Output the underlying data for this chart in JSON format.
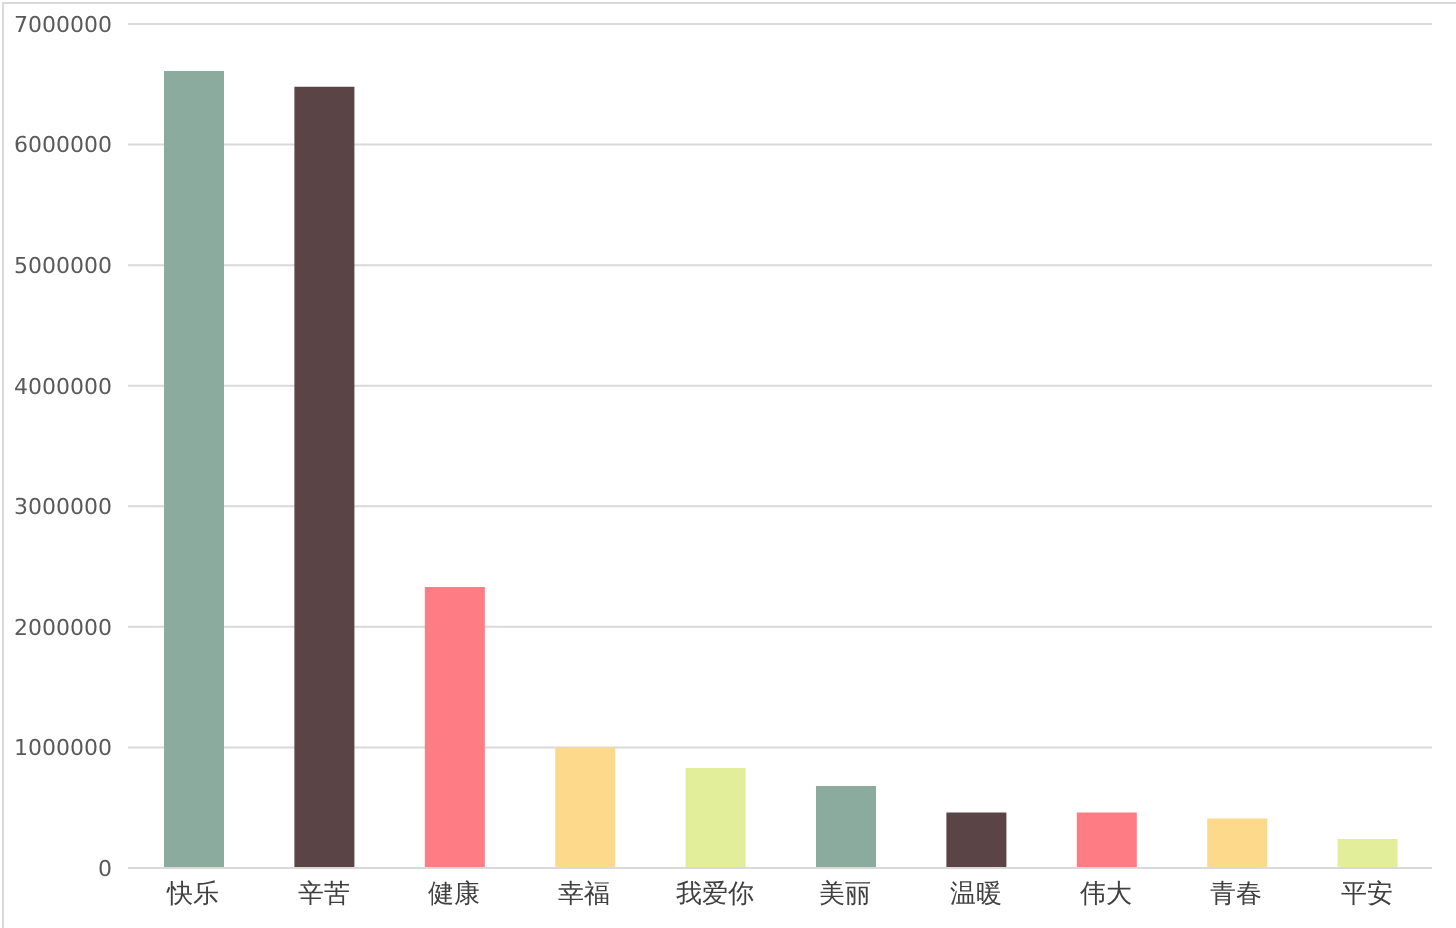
{
  "chart_data": {
    "type": "bar",
    "categories": [
      "快乐",
      "辛苦",
      "健康",
      "幸福",
      "我爱你",
      "美丽",
      "温暖",
      "伟大",
      "青春",
      "平安"
    ],
    "values": [
      6610000,
      6480000,
      2330000,
      1000000,
      830000,
      680000,
      460000,
      460000,
      410000,
      240000
    ],
    "colors": [
      "#8aab9e",
      "#5b4446",
      "#fe7c83",
      "#fcd98b",
      "#e2ee9a",
      "#8aab9e",
      "#5b4446",
      "#fe7c83",
      "#fcd98b",
      "#e2ee9a"
    ],
    "ylim": [
      0,
      7000000
    ],
    "yticks": [
      0,
      1000000,
      2000000,
      3000000,
      4000000,
      5000000,
      6000000,
      7000000
    ],
    "grid": "y",
    "legend": false
  }
}
